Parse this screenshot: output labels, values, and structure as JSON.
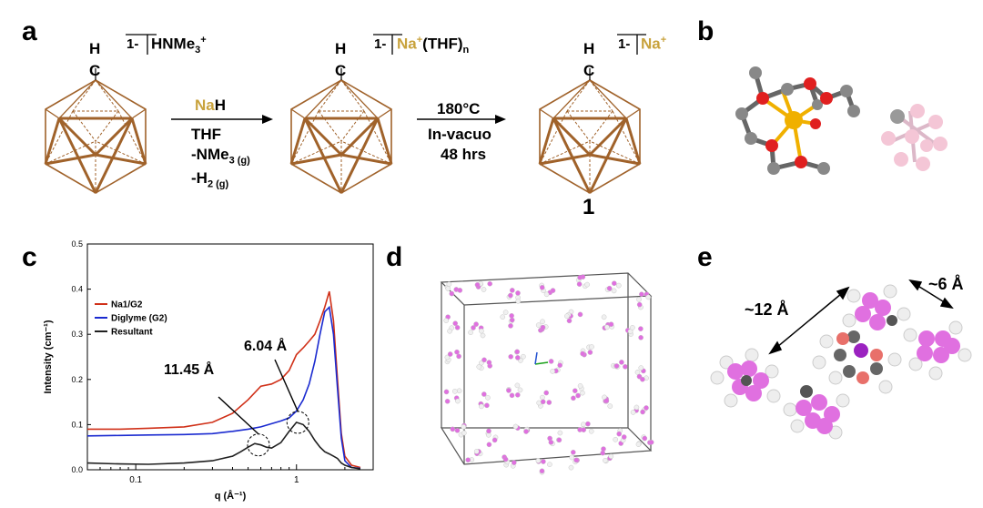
{
  "figure": {
    "panel_labels": [
      "a",
      "b",
      "c",
      "d",
      "e"
    ],
    "panel_a": {
      "molecule_1": {
        "h_label": "H",
        "c_label": "C",
        "charge": "1-",
        "counter_ion": "HNMe",
        "counter_sub": "3",
        "counter_sup": "+"
      },
      "molecule_2": {
        "h_label": "H",
        "c_label": "C",
        "charge": "1-",
        "counter_ion": "Na",
        "counter_sup": "+",
        "counter_suffix": "(THF)",
        "counter_suffix_sub": "n"
      },
      "molecule_3": {
        "h_label": "H",
        "c_label": "C",
        "charge": "1-",
        "counter_ion": "Na",
        "counter_sup": "+",
        "compound_number": "1"
      },
      "step1": {
        "reagent_na": "Na",
        "reagent_h": "H",
        "solvent": "THF",
        "byproduct1": "-NMe",
        "byproduct1_sub": "3",
        "byproduct1_phase": "(g)",
        "byproduct2": "-H",
        "byproduct2_sub": "2",
        "byproduct2_phase": "(g)"
      },
      "step2": {
        "temperature": "180°C",
        "condition": "In-vacuo",
        "time": "48 hrs"
      }
    },
    "panel_c": {
      "annotation_1": "6.04 Å",
      "annotation_2": "11.45 Å"
    },
    "panel_e": {
      "distance_1": "~12 Å",
      "distance_2": "~6 Å"
    },
    "colors": {
      "gold": "#c8a23c",
      "cage": "#a0622a",
      "na_ion": "#f0b000",
      "oxygen": "#e02020",
      "carbon": "#808080",
      "boron": "#e090e0",
      "hydrogen": "#e8e8e8"
    }
  },
  "chart_data": {
    "type": "line",
    "xlabel": "q (Å⁻¹)",
    "ylabel": "Intensity (cm⁻¹)",
    "xscale": "log",
    "xlim": [
      0.05,
      3.0
    ],
    "ylim": [
      0,
      0.5
    ],
    "xticks": [
      {
        "value": 0.1,
        "label": "0.1"
      },
      {
        "value": 1,
        "label": "1"
      }
    ],
    "yticks": [
      "0.0",
      "0.1",
      "0.2",
      "0.3",
      "0.4",
      "0.5"
    ],
    "legend_position": "upper-left",
    "series": [
      {
        "name": "Na1/G2",
        "color": "#d03018",
        "x": [
          0.05,
          0.08,
          0.12,
          0.2,
          0.3,
          0.4,
          0.5,
          0.6,
          0.7,
          0.8,
          0.9,
          1.0,
          1.1,
          1.2,
          1.3,
          1.4,
          1.5,
          1.6,
          1.7,
          1.8,
          1.9,
          2.0,
          2.2,
          2.5
        ],
        "y": [
          0.09,
          0.09,
          0.092,
          0.095,
          0.105,
          0.125,
          0.155,
          0.185,
          0.19,
          0.2,
          0.22,
          0.255,
          0.27,
          0.285,
          0.3,
          0.33,
          0.36,
          0.395,
          0.33,
          0.2,
          0.08,
          0.03,
          0.01,
          0.005
        ]
      },
      {
        "name": "Diglyme (G2)",
        "color": "#1a2ad0",
        "x": [
          0.05,
          0.08,
          0.12,
          0.2,
          0.3,
          0.4,
          0.5,
          0.6,
          0.7,
          0.8,
          0.9,
          1.0,
          1.1,
          1.2,
          1.3,
          1.4,
          1.5,
          1.6,
          1.7,
          1.8,
          1.9,
          2.0,
          2.2,
          2.5
        ],
        "y": [
          0.075,
          0.076,
          0.077,
          0.078,
          0.08,
          0.085,
          0.09,
          0.095,
          0.102,
          0.108,
          0.115,
          0.13,
          0.155,
          0.19,
          0.24,
          0.3,
          0.35,
          0.36,
          0.3,
          0.18,
          0.07,
          0.02,
          0.005,
          0.003
        ]
      },
      {
        "name": "Resultant",
        "color": "#202020",
        "x": [
          0.05,
          0.08,
          0.12,
          0.2,
          0.3,
          0.4,
          0.45,
          0.5,
          0.55,
          0.6,
          0.65,
          0.7,
          0.8,
          0.9,
          1.0,
          1.1,
          1.2,
          1.3,
          1.4,
          1.5,
          1.6,
          1.7,
          1.8,
          1.9,
          2.0,
          2.2,
          2.5
        ],
        "y": [
          0.015,
          0.013,
          0.012,
          0.015,
          0.02,
          0.03,
          0.04,
          0.05,
          0.058,
          0.055,
          0.05,
          0.048,
          0.06,
          0.085,
          0.105,
          0.1,
          0.085,
          0.065,
          0.05,
          0.04,
          0.035,
          0.03,
          0.025,
          0.015,
          0.01,
          0.005,
          0.002
        ]
      }
    ],
    "circled_peaks": [
      {
        "x": 0.58,
        "y": 0.055
      },
      {
        "x": 1.02,
        "y": 0.105
      }
    ]
  }
}
